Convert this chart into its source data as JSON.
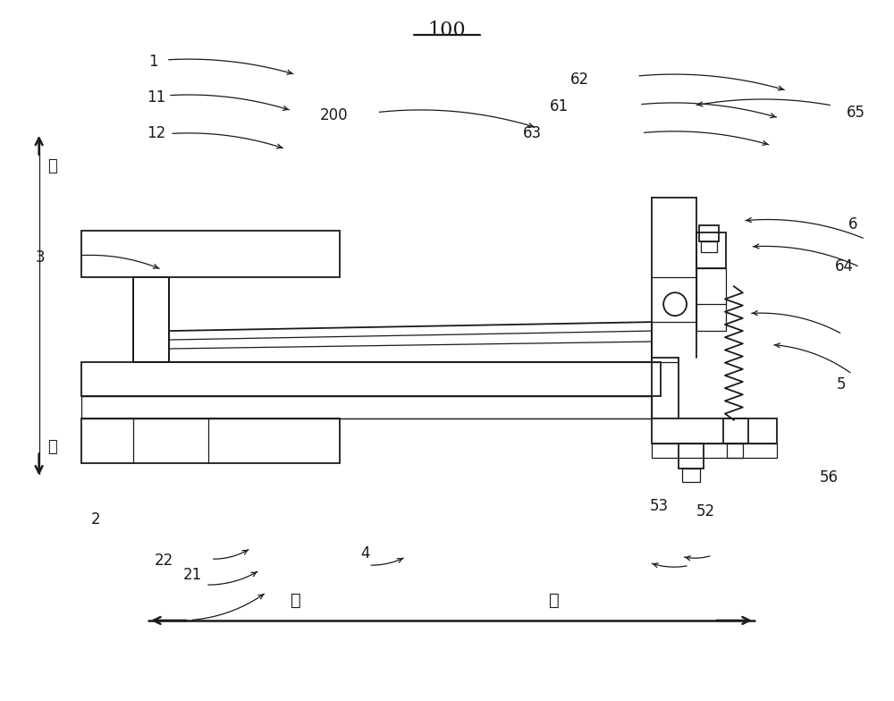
{
  "bg_color": "#ffffff",
  "line_color": "#1a1a1a",
  "title": "100",
  "dir_shang": "上",
  "dir_xia": "下",
  "dir_qian": "前",
  "dir_hou": "后",
  "label_fs": 12,
  "title_fs": 16
}
